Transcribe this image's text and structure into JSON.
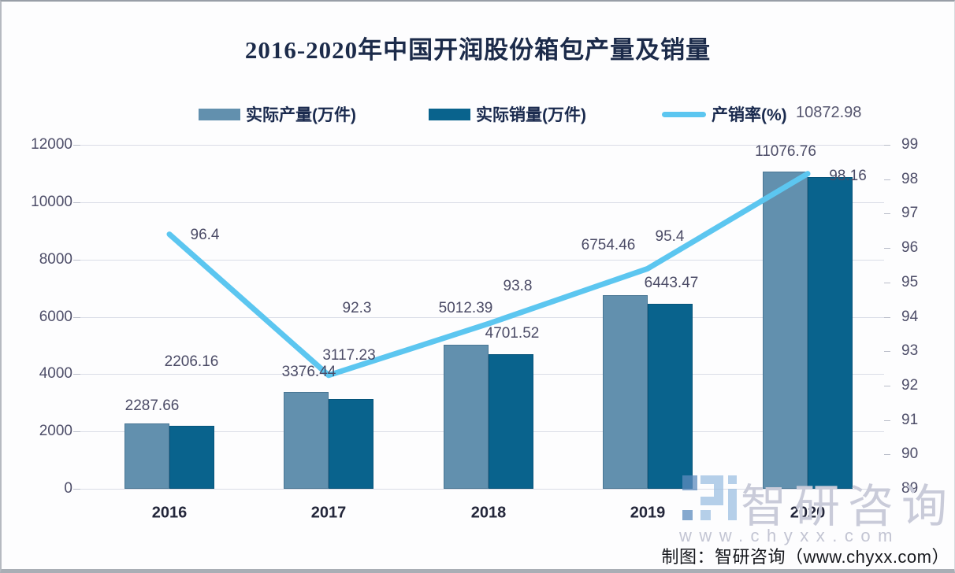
{
  "title": "2016-2020年中国开润股份箱包产量及销量",
  "chart_data": {
    "type": "combo",
    "title": "2016-2020年中国开润股份箱包产量及销量",
    "categories": [
      "2016",
      "2017",
      "2018",
      "2019",
      "2020"
    ],
    "series": [
      {
        "name": "实际产量(万件)",
        "type": "bar",
        "axis": "left",
        "color": "#6290ae",
        "values": [
          2287.66,
          3376.44,
          5012.39,
          6754.46,
          11076.76
        ]
      },
      {
        "name": "实际销量(万件)",
        "type": "bar",
        "axis": "left",
        "color": "#09638d",
        "values": [
          2206.16,
          3117.23,
          4701.52,
          6443.47,
          10872.98
        ]
      },
      {
        "name": "产销率(%)",
        "type": "line",
        "axis": "right",
        "color": "#5cc6f0",
        "values": [
          96.4,
          92.3,
          93.8,
          95.4,
          98.16
        ]
      }
    ],
    "left_axis": {
      "min": 0,
      "max": 12000,
      "step": 2000,
      "tick_labels": [
        "0",
        "2000",
        "4000",
        "6000",
        "8000",
        "10000",
        "12000"
      ]
    },
    "right_axis": {
      "min": 89,
      "max": 99,
      "step": 1,
      "tick_labels": [
        "89",
        "90",
        "91",
        "92",
        "93",
        "94",
        "95",
        "96",
        "97",
        "98",
        "99"
      ]
    },
    "grid": true,
    "legend_position": "top"
  },
  "watermark": {
    "brand": "智研咨询",
    "site": "www.chyxx.com"
  },
  "footer": {
    "credit": "制图：智研咨询（www.chyxx.com）"
  }
}
